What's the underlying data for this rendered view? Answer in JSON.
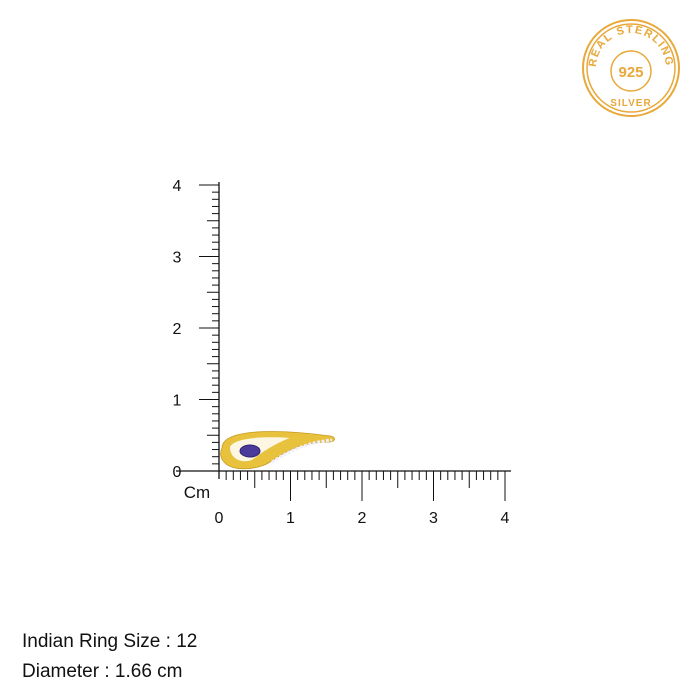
{
  "stamp": {
    "top_text": "REAL STERLING",
    "center_text": "925",
    "bottom_text": "SILVER",
    "color": "#e8a83a"
  },
  "ruler": {
    "unit_label": "Cm",
    "x_ticks": [
      "0",
      "1",
      "2",
      "3",
      "4"
    ],
    "y_ticks": [
      "0",
      "1",
      "2",
      "3",
      "4"
    ],
    "range_cm": [
      0,
      4
    ]
  },
  "product": {
    "metal_color": "#e8c23c",
    "stone_color": "#4a3a9a"
  },
  "info": {
    "ring_size": "Indian Ring Size : 12",
    "diameter": "Diameter : 1.66 cm"
  }
}
